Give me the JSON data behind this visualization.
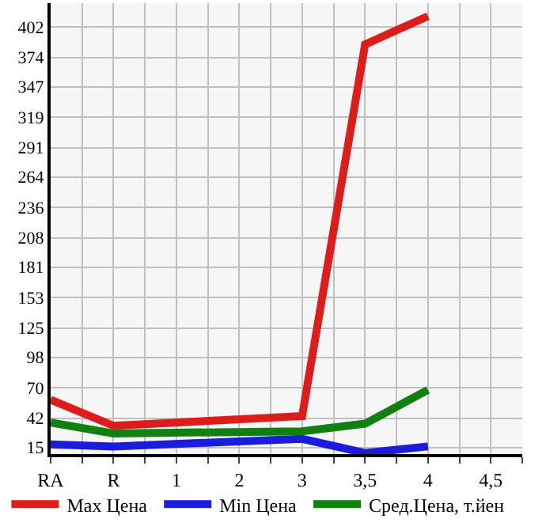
{
  "chart_data": {
    "type": "line",
    "categories": [
      "RA",
      "R",
      "1",
      "2",
      "3",
      "3,5",
      "4",
      "4,5"
    ],
    "series": [
      {
        "name": "Max Цена",
        "color": "#dd1c1c",
        "values": [
          59,
          35,
          null,
          null,
          44,
          386,
          412,
          null
        ]
      },
      {
        "name": "Min Цена",
        "color": "#1c1cdd",
        "values": [
          18,
          16,
          null,
          null,
          23,
          10,
          16,
          null
        ]
      },
      {
        "name": "Сред.Цена, т.йен",
        "color": "#108010",
        "values": [
          38,
          28,
          null,
          null,
          30,
          37,
          68,
          null
        ]
      }
    ],
    "ylim": [
      9,
      424
    ],
    "yticks": [
      15,
      42,
      70,
      98,
      125,
      153,
      181,
      208,
      236,
      264,
      291,
      319,
      347,
      374,
      402
    ],
    "grid": true,
    "legend": "bottom",
    "marker": "none",
    "line_style": "solid"
  }
}
